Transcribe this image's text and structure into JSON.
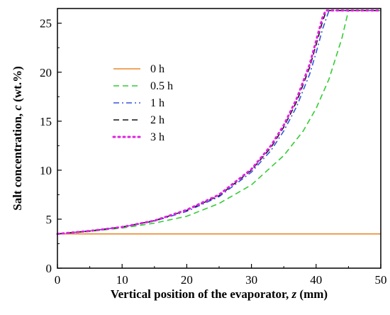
{
  "chart_data": {
    "type": "line",
    "xlabel": "Vertical position of the evaporator, z (mm)",
    "xlabel_parts": [
      "Vertical position of the evaporator, ",
      "z",
      " (mm)"
    ],
    "ylabel": "Salt concentration, c (wt.%)",
    "ylabel_parts": [
      "Salt concentration, ",
      "c",
      " (wt.%)"
    ],
    "xlim": [
      0,
      50
    ],
    "ylim": [
      0,
      26.5
    ],
    "xticks": [
      0,
      10,
      20,
      30,
      40,
      50
    ],
    "yticks": [
      0,
      5,
      10,
      15,
      20,
      25
    ],
    "grid": false,
    "legend_position": "upper-left",
    "series": [
      {
        "name": "0 h",
        "color": "#E8892B",
        "dash": "solid",
        "x": [
          0,
          50
        ],
        "y": [
          3.5,
          3.5
        ]
      },
      {
        "name": "0.5 h",
        "color": "#33CC33",
        "dash": "dash",
        "x": [
          0,
          5,
          10,
          15,
          20,
          25,
          30,
          35,
          38,
          40,
          42,
          44,
          45,
          50
        ],
        "y": [
          3.5,
          3.75,
          4.1,
          4.6,
          5.3,
          6.6,
          8.5,
          11.5,
          14.0,
          16.3,
          19.3,
          23.5,
          26.3,
          26.3
        ]
      },
      {
        "name": "1 h",
        "color": "#3355DD",
        "dash": "dashdot",
        "x": [
          0,
          5,
          10,
          15,
          20,
          25,
          30,
          33,
          35,
          37,
          39,
          40,
          41,
          42,
          50
        ],
        "y": [
          3.5,
          3.8,
          4.2,
          4.8,
          5.8,
          7.3,
          9.8,
          12.0,
          14.0,
          16.5,
          19.8,
          22.0,
          24.4,
          26.3,
          26.3
        ]
      },
      {
        "name": "2 h",
        "color": "#111111",
        "dash": "dash",
        "x": [
          0,
          5,
          10,
          15,
          20,
          25,
          30,
          33,
          35,
          37,
          39,
          40,
          41,
          41.6,
          50
        ],
        "y": [
          3.5,
          3.8,
          4.2,
          4.85,
          5.9,
          7.4,
          10.0,
          12.3,
          14.4,
          17.0,
          20.5,
          22.8,
          25.2,
          26.3,
          26.3
        ]
      },
      {
        "name": "3 h",
        "color": "#E020E0",
        "dash": "dot",
        "x": [
          0,
          5,
          10,
          15,
          20,
          25,
          30,
          33,
          35,
          37,
          39,
          40,
          41,
          41.5,
          50
        ],
        "y": [
          3.5,
          3.8,
          4.2,
          4.85,
          5.95,
          7.5,
          10.1,
          12.5,
          14.6,
          17.3,
          20.8,
          23.2,
          25.6,
          26.3,
          26.3
        ]
      }
    ]
  }
}
